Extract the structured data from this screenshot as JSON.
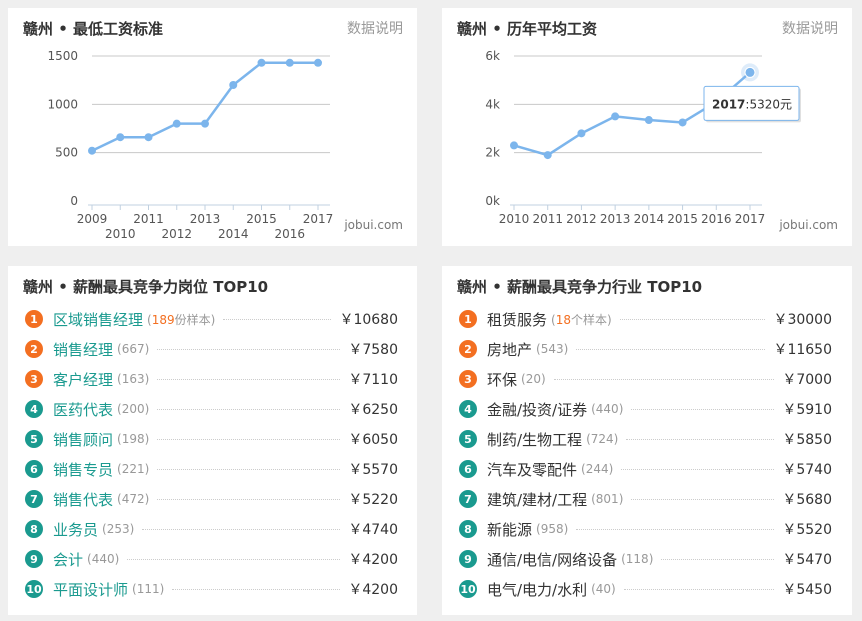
{
  "panels": {
    "min_wage": {
      "title": "赣州 • 最低工资标准",
      "explain": "数据说明",
      "watermark": "jobui.com"
    },
    "avg_wage": {
      "title": "赣州 • 历年平均工资",
      "explain": "数据说明",
      "watermark": "jobui.com"
    },
    "top_jobs": {
      "title": "赣州 • 薪酬最具竞争力岗位 TOP10"
    },
    "top_industries": {
      "title": "赣州 • 薪酬最具竞争力行业 TOP10"
    }
  },
  "chart_data": [
    {
      "type": "line",
      "title": "赣州 • 最低工资标准",
      "x": [
        2009,
        2010,
        2011,
        2012,
        2013,
        2014,
        2015,
        2016,
        2017
      ],
      "values": [
        520,
        660,
        660,
        800,
        800,
        1200,
        1430,
        1430,
        1430
      ],
      "y_ticks": [
        "0",
        "500",
        "1000",
        "1500"
      ],
      "x_ticks_upper": [
        "2009",
        "2011",
        "2013",
        "2015",
        "2017"
      ],
      "x_ticks_lower": [
        "2010",
        "2012",
        "2014",
        "2016"
      ],
      "ylim": [
        0,
        1500
      ],
      "grid": true,
      "color": "#7cb5ec"
    },
    {
      "type": "line",
      "title": "赣州 • 历年平均工资",
      "x": [
        2010,
        2011,
        2012,
        2013,
        2014,
        2015,
        2016,
        2017
      ],
      "values": [
        2300,
        1900,
        2800,
        3500,
        3350,
        3250,
        4100,
        5320
      ],
      "y_ticks": [
        "0k",
        "2k",
        "4k",
        "6k"
      ],
      "x_ticks": [
        "2010",
        "2011",
        "2012",
        "2013",
        "2014",
        "2015",
        "2016",
        "2017"
      ],
      "ylim": [
        0,
        6000
      ],
      "grid": true,
      "color": "#7cb5ec",
      "tooltip": {
        "year": "2017",
        "value": ":5320元"
      }
    }
  ],
  "top_jobs": [
    {
      "rank": "1",
      "name": "区域销售经理",
      "count_num": "189",
      "count_suffix": "份样本",
      "salary": "￥10680"
    },
    {
      "rank": "2",
      "name": "销售经理",
      "count": "(667)",
      "salary": "￥7580"
    },
    {
      "rank": "3",
      "name": "客户经理",
      "count": "(163)",
      "salary": "￥7110"
    },
    {
      "rank": "4",
      "name": "医药代表",
      "count": "(200)",
      "salary": "￥6250"
    },
    {
      "rank": "5",
      "name": "销售顾问",
      "count": "(198)",
      "salary": "￥6050"
    },
    {
      "rank": "6",
      "name": "销售专员",
      "count": "(221)",
      "salary": "￥5570"
    },
    {
      "rank": "7",
      "name": "销售代表",
      "count": "(472)",
      "salary": "￥5220"
    },
    {
      "rank": "8",
      "name": "业务员",
      "count": "(253)",
      "salary": "￥4740"
    },
    {
      "rank": "9",
      "name": "会计",
      "count": "(440)",
      "salary": "￥4200"
    },
    {
      "rank": "10",
      "name": "平面设计师",
      "count": "(111)",
      "salary": "￥4200"
    }
  ],
  "top_industries": [
    {
      "rank": "1",
      "name": "租赁服务",
      "count_num": "18",
      "count_suffix": "个样本",
      "salary": "￥30000"
    },
    {
      "rank": "2",
      "name": "房地产",
      "count": "(543)",
      "salary": "￥11650"
    },
    {
      "rank": "3",
      "name": "环保",
      "count": "(20)",
      "salary": "￥7000"
    },
    {
      "rank": "4",
      "name": "金融/投资/证券",
      "count": "(440)",
      "salary": "￥5910"
    },
    {
      "rank": "5",
      "name": "制药/生物工程",
      "count": "(724)",
      "salary": "￥5850"
    },
    {
      "rank": "6",
      "name": "汽车及零配件",
      "count": "(244)",
      "salary": "￥5740"
    },
    {
      "rank": "7",
      "name": "建筑/建材/工程",
      "count": "(801)",
      "salary": "￥5680"
    },
    {
      "rank": "8",
      "name": "新能源",
      "count": "(958)",
      "salary": "￥5520"
    },
    {
      "rank": "9",
      "name": "通信/电信/网络设备",
      "count": "(118)",
      "salary": "￥5470"
    },
    {
      "rank": "10",
      "name": "电气/电力/水利",
      "count": "(40)",
      "salary": "￥5450"
    }
  ],
  "colors": {
    "hot_badge": "#f36f21",
    "normal_badge": "#1a9a8f",
    "line": "#7cb5ec"
  }
}
